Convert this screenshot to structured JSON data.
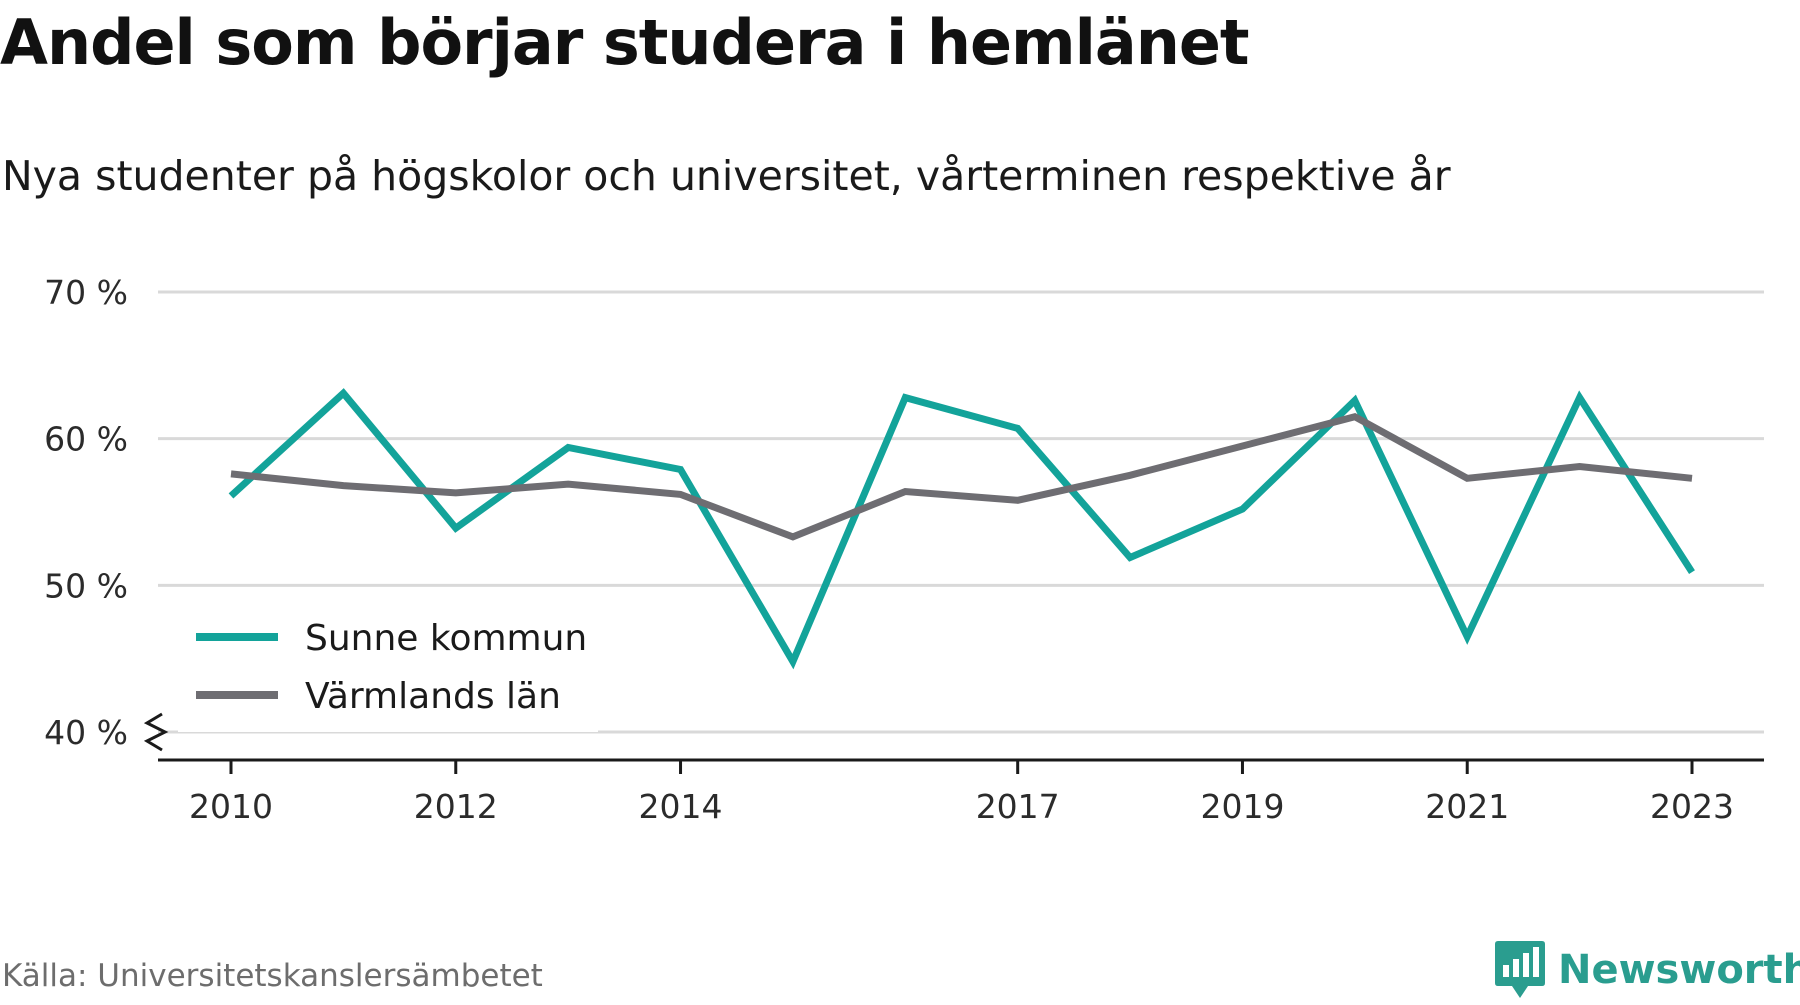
{
  "header": {
    "title": "Andel som börjar studera i hemlänet",
    "subtitle": "Nya studenter på högskolor och universitet, vårterminen respektive år"
  },
  "footer": {
    "source": "Källa: Universitetskanslersämbetet",
    "brand": "Newsworthy"
  },
  "colors": {
    "series_1": "#13a39a",
    "series_2": "#6e6d72",
    "grid": "#d9d9d9",
    "axis": "#1a1a1a",
    "brand": "#2a9d8f"
  },
  "chart_data": {
    "type": "line",
    "title": "Andel som börjar studera i hemlänet",
    "subtitle": "Nya studenter på högskolor och universitet, vårterminen respektive år",
    "x": [
      2010,
      2011,
      2012,
      2013,
      2014,
      2015,
      2016,
      2017,
      2018,
      2019,
      2020,
      2021,
      2022,
      2023
    ],
    "x_ticks": [
      "2010",
      "2012",
      "2014",
      "2017",
      "2019",
      "2021",
      "2023"
    ],
    "y_ticks": [
      "40 %",
      "50 %",
      "60 %",
      "70 %"
    ],
    "ylim": [
      40,
      70
    ],
    "y_unit": "%",
    "y_axis_broken": true,
    "grid": true,
    "legend_position": "bottom-left",
    "series": [
      {
        "name": "Sunne kommun",
        "color": "#13a39a",
        "values": [
          56.1,
          63.1,
          53.9,
          59.4,
          57.9,
          44.8,
          62.8,
          60.7,
          51.9,
          55.2,
          62.6,
          46.5,
          62.8,
          50.9
        ]
      },
      {
        "name": "Värmlands län",
        "color": "#6e6d72",
        "values": [
          57.6,
          56.8,
          56.3,
          56.9,
          56.2,
          53.3,
          56.4,
          55.8,
          57.5,
          59.5,
          61.5,
          57.3,
          58.1,
          57.3
        ]
      }
    ]
  }
}
